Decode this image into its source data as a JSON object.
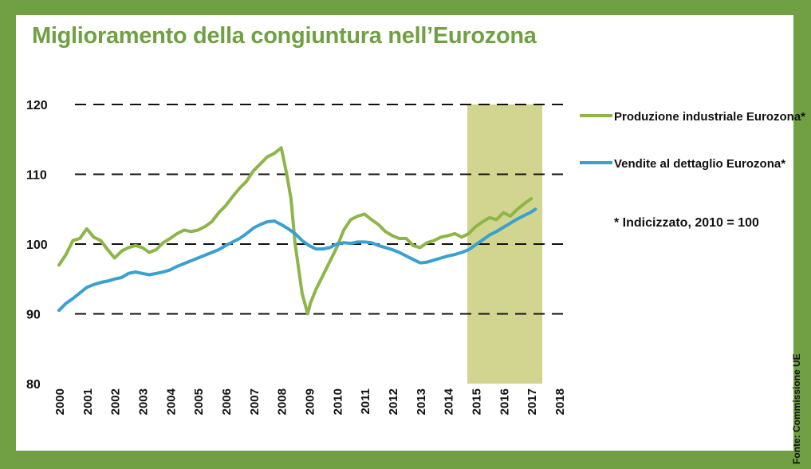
{
  "title": "Miglioramento della congiuntura nell’Eurozona",
  "source": "Fonte: Commissione UE",
  "note": "* Indicizzato, 2010 = 100",
  "colors": {
    "background": "#70a043",
    "title": "#70a043",
    "industrial": "#8db548",
    "retail": "#3aa0d0",
    "highlight": "#d1d58f"
  },
  "chart_data": {
    "type": "line",
    "title": "Miglioramento della congiuntura nell’Eurozona",
    "xlabel": "",
    "ylabel": "",
    "xlim": [
      2000,
      2018
    ],
    "ylim": [
      80,
      120
    ],
    "x_ticks": [
      "2000",
      "2001",
      "2002",
      "2003",
      "2004",
      "2005",
      "2006",
      "2007",
      "2008",
      "2009",
      "2010",
      "2011",
      "2012",
      "2013",
      "2014",
      "2015",
      "2016",
      "2017",
      "2018"
    ],
    "y_ticks": [
      "80",
      "90",
      "100",
      "110",
      "120"
    ],
    "grid": "horizontal-dashed",
    "legend_position": "right",
    "highlight_band": [
      2014.7,
      2017.4
    ],
    "series": [
      {
        "name": "Produzione industriale Eurozona*",
        "color": "#8db548",
        "x": [
          2000.0,
          2000.25,
          2000.5,
          2000.75,
          2001.0,
          2001.25,
          2001.5,
          2001.75,
          2002.0,
          2002.25,
          2002.5,
          2002.75,
          2003.0,
          2003.25,
          2003.5,
          2003.75,
          2004.0,
          2004.25,
          2004.5,
          2004.75,
          2005.0,
          2005.25,
          2005.5,
          2005.75,
          2006.0,
          2006.25,
          2006.5,
          2006.75,
          2007.0,
          2007.25,
          2007.5,
          2007.75,
          2008.0,
          2008.2,
          2008.35,
          2008.5,
          2008.75,
          2008.95,
          2009.05,
          2009.25,
          2009.5,
          2009.75,
          2010.0,
          2010.25,
          2010.5,
          2010.75,
          2011.0,
          2011.25,
          2011.5,
          2011.75,
          2012.0,
          2012.25,
          2012.5,
          2012.75,
          2013.0,
          2013.25,
          2013.5,
          2013.75,
          2014.0,
          2014.25,
          2014.5,
          2014.75,
          2015.0,
          2015.25,
          2015.5,
          2015.75,
          2016.0,
          2016.25,
          2016.5,
          2016.75,
          2017.0
        ],
        "values": [
          97.0,
          98.5,
          100.5,
          100.8,
          102.2,
          101.0,
          100.5,
          99.2,
          98.0,
          99.0,
          99.5,
          99.8,
          99.5,
          98.8,
          99.2,
          100.2,
          100.8,
          101.5,
          102.0,
          101.8,
          102.0,
          102.5,
          103.2,
          104.5,
          105.5,
          106.8,
          108.0,
          109.0,
          110.5,
          111.5,
          112.5,
          113.0,
          113.8,
          110.0,
          106.5,
          100.0,
          93.0,
          90.0,
          91.5,
          93.5,
          95.5,
          97.5,
          99.5,
          102.0,
          103.5,
          104.0,
          104.3,
          103.5,
          102.8,
          101.8,
          101.2,
          100.8,
          100.8,
          99.8,
          99.5,
          100.2,
          100.5,
          101.0,
          101.2,
          101.5,
          101.0,
          101.5,
          102.5,
          103.2,
          103.8,
          103.5,
          104.5,
          104.0,
          105.0,
          105.8,
          106.5
        ]
      },
      {
        "name": "Vendite al dettaglio Eurozona*",
        "color": "#3aa0d0",
        "x": [
          2000.0,
          2000.25,
          2000.5,
          2000.75,
          2001.0,
          2001.25,
          2001.5,
          2001.75,
          2002.0,
          2002.25,
          2002.5,
          2002.75,
          2003.0,
          2003.25,
          2003.5,
          2003.75,
          2004.0,
          2004.25,
          2004.5,
          2004.75,
          2005.0,
          2005.25,
          2005.5,
          2005.75,
          2006.0,
          2006.25,
          2006.5,
          2006.75,
          2007.0,
          2007.25,
          2007.5,
          2007.75,
          2008.0,
          2008.25,
          2008.5,
          2008.75,
          2009.0,
          2009.25,
          2009.5,
          2009.75,
          2010.0,
          2010.25,
          2010.5,
          2010.75,
          2011.0,
          2011.25,
          2011.5,
          2011.75,
          2012.0,
          2012.25,
          2012.5,
          2012.75,
          2013.0,
          2013.25,
          2013.5,
          2013.75,
          2014.0,
          2014.25,
          2014.5,
          2014.75,
          2015.0,
          2015.25,
          2015.5,
          2015.75,
          2016.0,
          2016.25,
          2016.5,
          2016.75,
          2017.0,
          2017.15
        ],
        "values": [
          90.5,
          91.5,
          92.2,
          93.0,
          93.8,
          94.2,
          94.5,
          94.7,
          95.0,
          95.2,
          95.8,
          96.0,
          95.8,
          95.6,
          95.8,
          96.0,
          96.3,
          96.8,
          97.2,
          97.6,
          98.0,
          98.4,
          98.8,
          99.2,
          99.8,
          100.3,
          100.8,
          101.5,
          102.3,
          102.8,
          103.2,
          103.3,
          102.8,
          102.2,
          101.5,
          100.5,
          99.8,
          99.3,
          99.3,
          99.5,
          100.0,
          100.2,
          100.1,
          100.3,
          100.3,
          100.2,
          99.8,
          99.5,
          99.2,
          98.8,
          98.3,
          97.8,
          97.3,
          97.4,
          97.7,
          98.0,
          98.3,
          98.5,
          98.8,
          99.2,
          99.9,
          100.6,
          101.3,
          101.8,
          102.4,
          103.0,
          103.6,
          104.1,
          104.6,
          105.0
        ]
      }
    ]
  }
}
